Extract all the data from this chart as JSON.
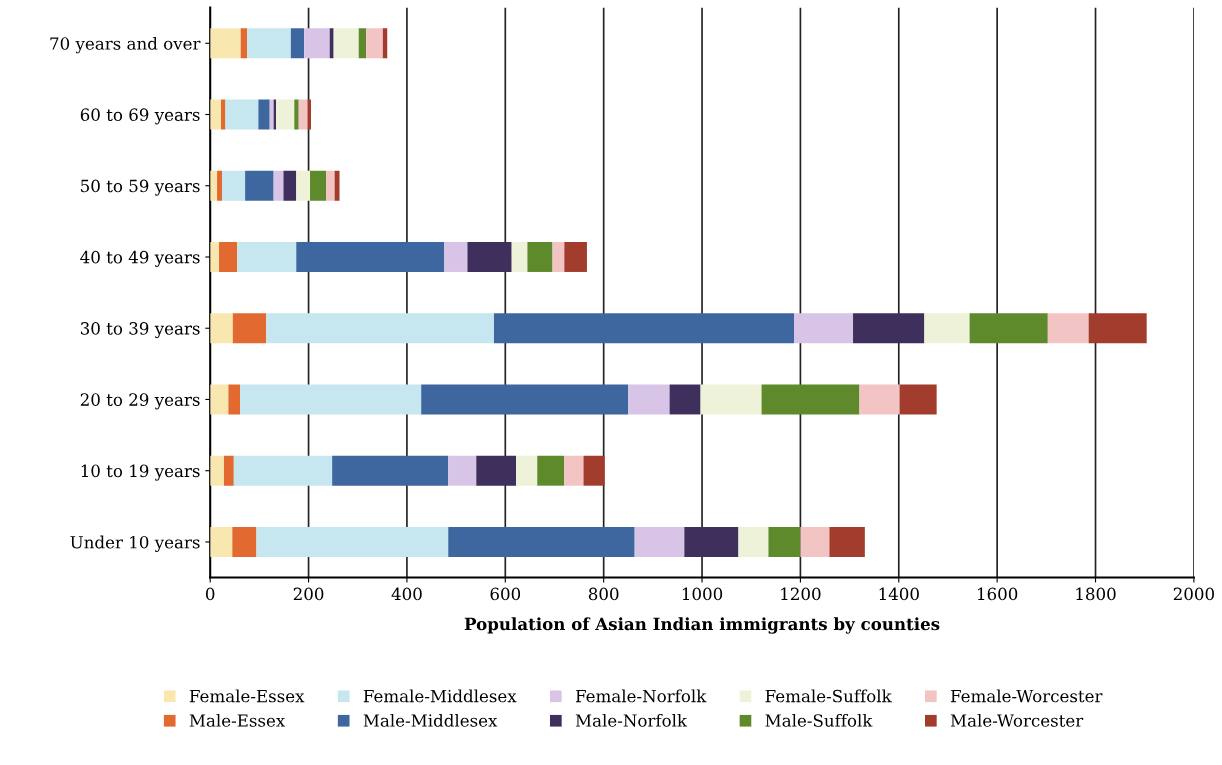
{
  "chart_data": {
    "type": "bar",
    "orientation": "horizontal",
    "stacked": true,
    "xlabel": "Population of Asian Indian immigrants by counties",
    "categories": [
      "70 years and over",
      "60 to 69 years",
      "50 to 59 years",
      "40 to 49 years",
      "30 to 39 years",
      "20 to 29 years",
      "10 to 19 years",
      "Under 10 years"
    ],
    "series": [
      {
        "name": "Female-Essex",
        "color": "#f8e8b0",
        "values": [
          62,
          22,
          14,
          18,
          46,
          37,
          28,
          45
        ]
      },
      {
        "name": "Male-Essex",
        "color": "#e2692f",
        "values": [
          13,
          9,
          10,
          37,
          68,
          24,
          20,
          49
        ]
      },
      {
        "name": "Female-Middlesex",
        "color": "#c6e6f0",
        "values": [
          89,
          67,
          47,
          120,
          463,
          368,
          200,
          390
        ]
      },
      {
        "name": "Male-Middlesex",
        "color": "#3e67a0",
        "values": [
          27,
          23,
          58,
          301,
          610,
          421,
          236,
          379
        ]
      },
      {
        "name": "Female-Norfolk",
        "color": "#d8c4e6",
        "values": [
          52,
          8,
          20,
          47,
          120,
          84,
          57,
          101
        ]
      },
      {
        "name": "Male-Norfolk",
        "color": "#3e2f5c",
        "values": [
          8,
          5,
          26,
          90,
          145,
          63,
          81,
          110
        ]
      },
      {
        "name": "Female-Suffolk",
        "color": "#eef2d8",
        "values": [
          51,
          37,
          28,
          32,
          92,
          124,
          43,
          61
        ]
      },
      {
        "name": "Male-Suffolk",
        "color": "#5e8a2c",
        "values": [
          15,
          9,
          33,
          51,
          159,
          199,
          55,
          65
        ]
      },
      {
        "name": "Female-Worcester",
        "color": "#f2c4c4",
        "values": [
          34,
          18,
          17,
          24,
          83,
          82,
          39,
          59
        ]
      },
      {
        "name": "Male-Worcester",
        "color": "#a23c2c",
        "values": [
          9,
          7,
          10,
          46,
          118,
          75,
          43,
          72
        ]
      }
    ],
    "xlim": [
      0,
      2000
    ],
    "xticks": [
      0,
      200,
      400,
      600,
      800,
      1000,
      1200,
      1400,
      1600,
      1800,
      2000
    ],
    "grid": "x",
    "legend": "bottom"
  }
}
